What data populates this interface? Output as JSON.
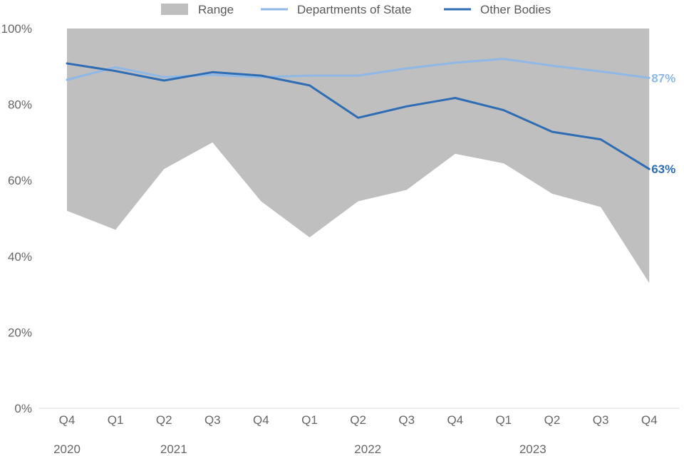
{
  "chart_data": {
    "type": "line",
    "title": "",
    "xlabel": "",
    "ylabel": "",
    "ylim": [
      0,
      100
    ],
    "y_ticks": [
      "0%",
      "20%",
      "40%",
      "60%",
      "80%",
      "100%"
    ],
    "quarters": [
      "Q4",
      "Q1",
      "Q2",
      "Q3",
      "Q4",
      "Q1",
      "Q2",
      "Q3",
      "Q4",
      "Q1",
      "Q2",
      "Q3",
      "Q4"
    ],
    "years": [
      {
        "label": "2020",
        "index": 0
      },
      {
        "label": "2021",
        "index": 2.2
      },
      {
        "label": "2022",
        "index": 6.2
      },
      {
        "label": "2023",
        "index": 9.6
      }
    ],
    "range": {
      "name": "Range",
      "color": "#bfbfbf",
      "lower": [
        52,
        47,
        63,
        70,
        54.5,
        45,
        54.5,
        57.5,
        67,
        64.5,
        56.5,
        53,
        33
      ],
      "upper": [
        100,
        100,
        100,
        100,
        100,
        100,
        100,
        100,
        100,
        100,
        100,
        100,
        100
      ]
    },
    "series": [
      {
        "name": "Departments of State",
        "color": "#8fb8e6",
        "values": [
          86.5,
          89.8,
          87.2,
          87.8,
          87.2,
          87.6,
          87.6,
          89.5,
          91,
          92,
          90.2,
          88.7,
          87
        ],
        "end_label": "87%"
      },
      {
        "name": "Other Bodies",
        "color": "#2e6db4",
        "values": [
          90.8,
          88.8,
          86.3,
          88.5,
          87.6,
          85,
          76.5,
          79.5,
          81.7,
          78.5,
          72.8,
          70.8,
          63
        ],
        "end_label": "63%"
      }
    ]
  }
}
